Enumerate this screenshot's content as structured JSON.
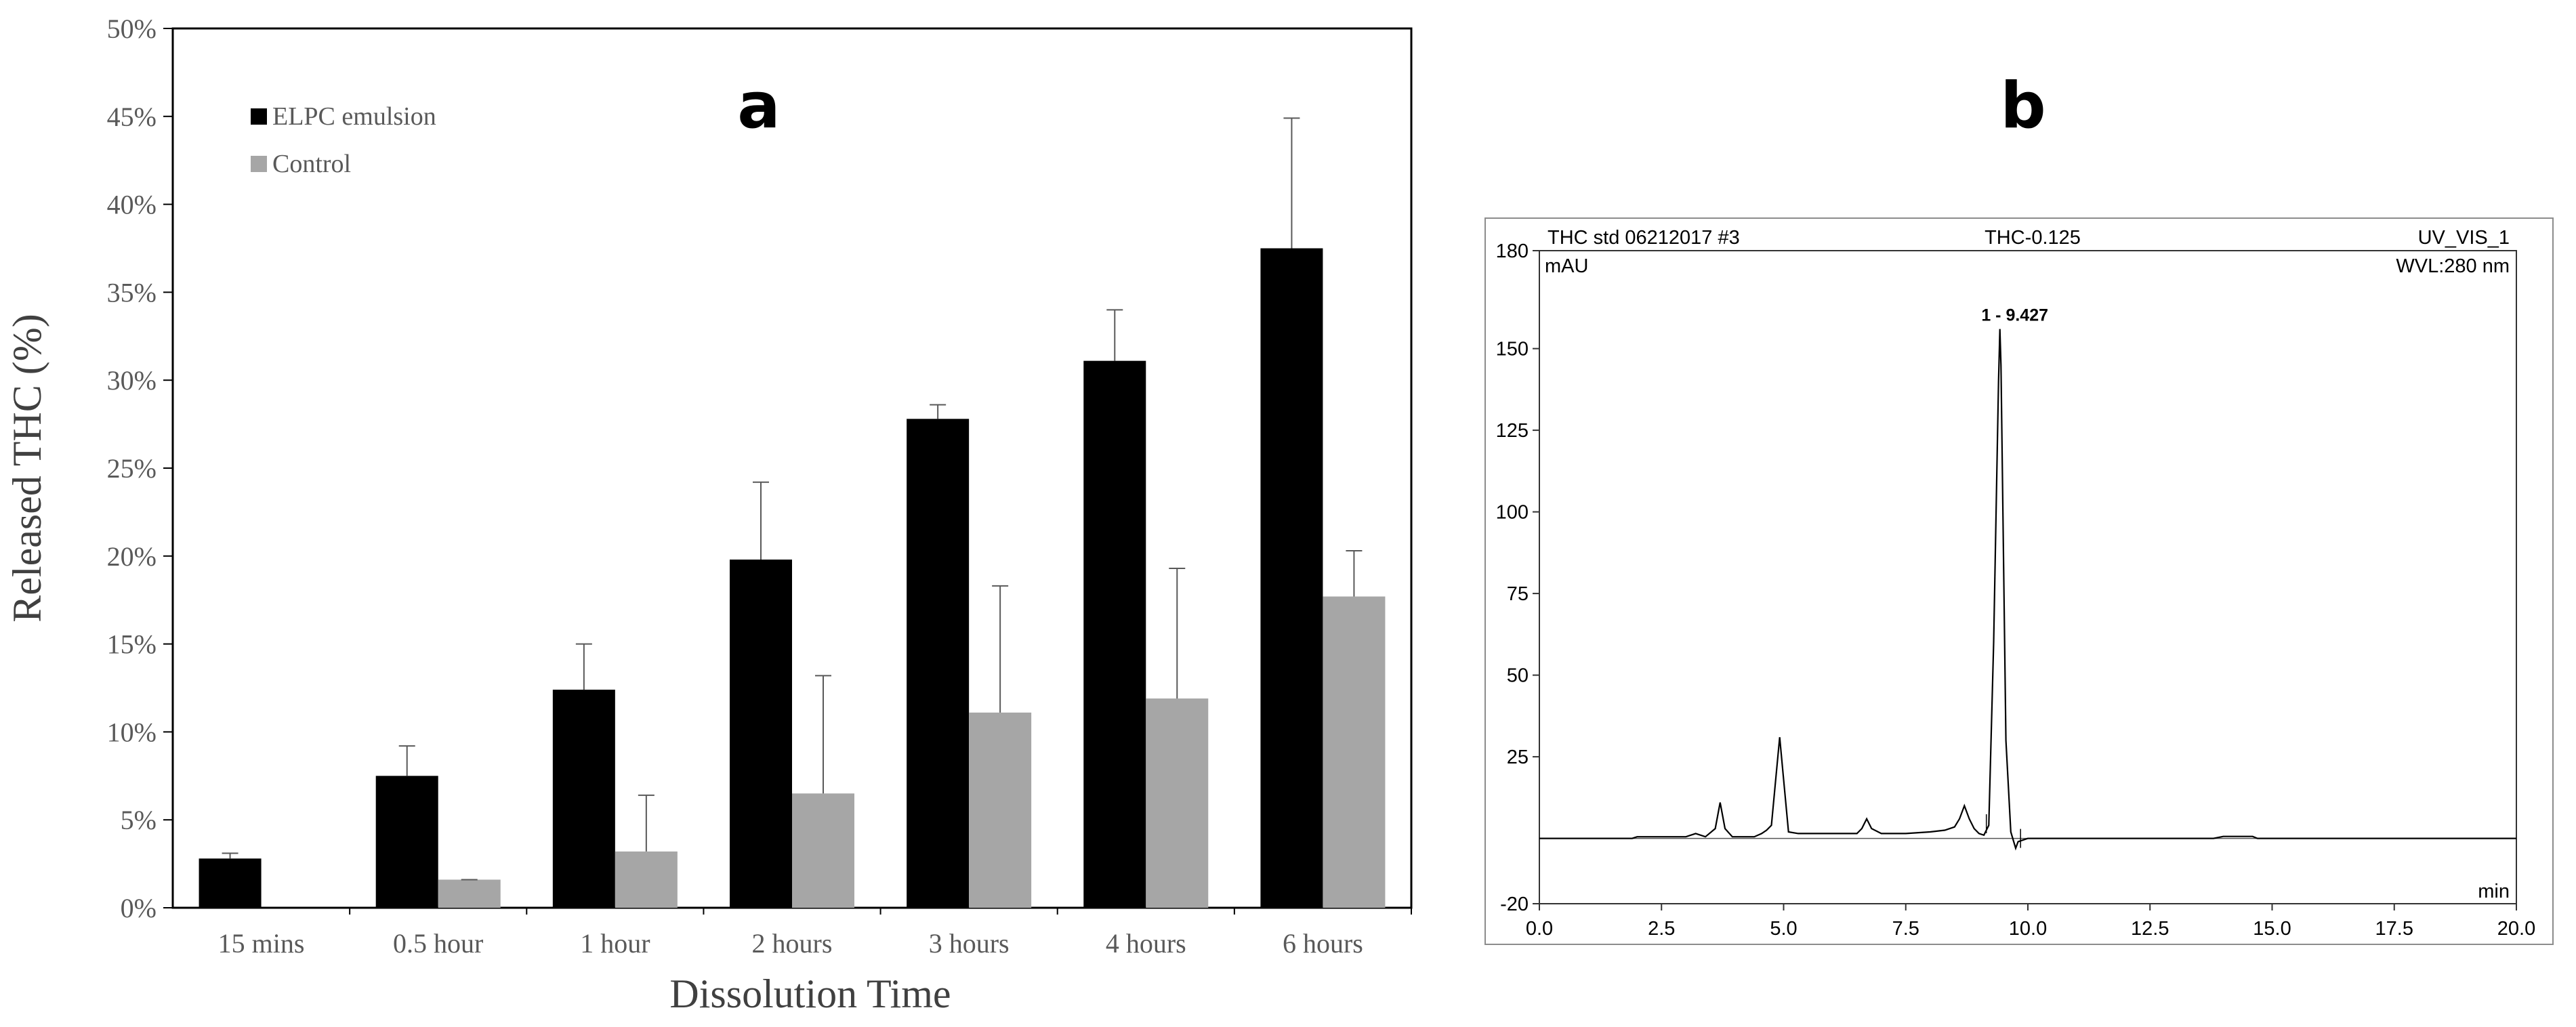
{
  "chart_data": [
    {
      "panel_label": "a",
      "type": "bar",
      "categories": [
        "15 mins",
        "0.5 hour",
        "1 hour",
        "2 hours",
        "3 hours",
        "4 hours",
        "6 hours"
      ],
      "series": [
        {
          "name": "ELPC emulsion",
          "color": "#000000",
          "values": [
            2.8,
            7.5,
            12.4,
            19.8,
            27.8,
            31.1,
            37.5
          ],
          "errors": [
            0.3,
            1.7,
            2.6,
            4.4,
            0.8,
            2.9,
            7.4
          ]
        },
        {
          "name": "Control",
          "color": "#a6a6a6",
          "values": [
            null,
            1.6,
            3.2,
            6.5,
            11.1,
            11.9,
            17.7
          ],
          "errors": [
            null,
            0.0,
            3.2,
            6.7,
            7.2,
            7.4,
            2.6
          ]
        }
      ],
      "title": "",
      "xlabel": "Dissolution Time",
      "ylabel": "Released THC (%)",
      "ylim": [
        0,
        50
      ],
      "y_ticks": [
        "0%",
        "5%",
        "10%",
        "15%",
        "20%",
        "25%",
        "30%",
        "35%",
        "40%",
        "45%",
        "50%"
      ],
      "legend_position": "top-left",
      "grid": false
    },
    {
      "panel_label": "b",
      "type": "line",
      "header": {
        "left": "THC std 06212017 #3",
        "center": "THC-0.125",
        "right": "UV_VIS_1"
      },
      "y_unit": "mAU",
      "wavelength": "WVL:280 nm",
      "xlabel": "min",
      "xlim": [
        0,
        20
      ],
      "ylim": [
        -20,
        180
      ],
      "x_ticks": [
        "0.0",
        "2.5",
        "5.0",
        "7.5",
        "10.0",
        "12.5",
        "15.0",
        "17.5",
        "20.0"
      ],
      "y_ticks": [
        "-20",
        "25",
        "50",
        "75",
        "100",
        "125",
        "150",
        "180"
      ],
      "peak_label": "1 - 9.427",
      "x": [
        0.0,
        1.9,
        2.0,
        3.0,
        3.2,
        3.4,
        3.6,
        3.7,
        3.8,
        3.95,
        4.4,
        4.55,
        4.65,
        4.75,
        4.85,
        4.92,
        5.0,
        5.1,
        5.3,
        6.0,
        6.5,
        6.6,
        6.7,
        6.8,
        7.0,
        7.5,
        8.0,
        8.3,
        8.5,
        8.6,
        8.7,
        8.8,
        8.9,
        9.0,
        9.1,
        9.2,
        9.3,
        9.4,
        9.427,
        9.45,
        9.55,
        9.65,
        9.75,
        9.8,
        10.0,
        12.0,
        13.8,
        14.0,
        14.6,
        14.7,
        20.0
      ],
      "y": [
        0.0,
        0.0,
        0.5,
        0.5,
        1.5,
        0.5,
        3.0,
        11.0,
        3.0,
        0.5,
        0.5,
        1.5,
        2.5,
        4.0,
        20.0,
        31.0,
        18.0,
        2.0,
        1.5,
        1.5,
        1.5,
        3.0,
        6.0,
        3.0,
        1.5,
        1.5,
        2.0,
        2.5,
        3.5,
        6.0,
        10.0,
        6.0,
        3.0,
        1.5,
        1.0,
        4.0,
        60.0,
        140.0,
        156.0,
        145.0,
        30.0,
        2.0,
        -3.0,
        -1.0,
        0.0,
        0.0,
        0.0,
        0.6,
        0.6,
        0.0,
        0.0
      ],
      "baseline_marks": [
        {
          "x": 9.85,
          "y": 0
        },
        {
          "x": 9.15,
          "y": 4.5
        }
      ]
    }
  ]
}
